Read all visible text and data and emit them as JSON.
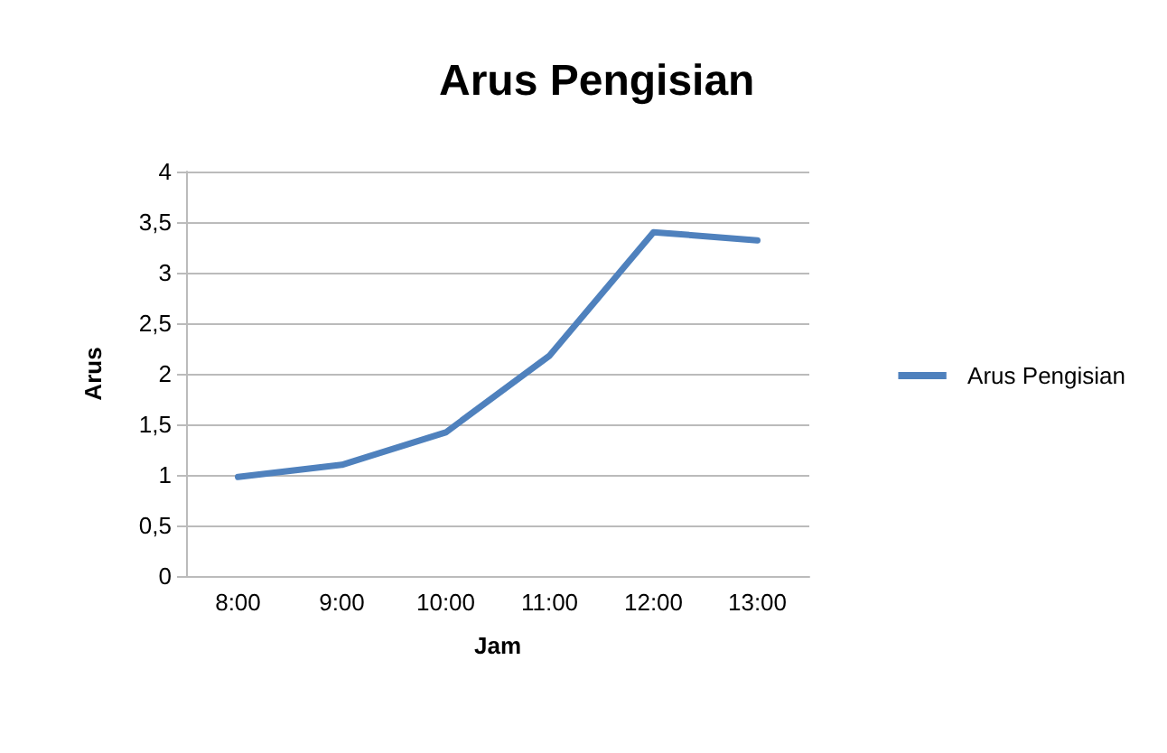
{
  "chart_data": {
    "type": "line",
    "title": "Arus Pengisian",
    "xlabel": "Jam",
    "ylabel": "Arus",
    "categories": [
      "8:00",
      "9:00",
      "10:00",
      "11:00",
      "12:00",
      "13:00"
    ],
    "series": [
      {
        "name": "Arus Pengisian",
        "color": "#4f81bd",
        "values": [
          0.98,
          1.1,
          1.42,
          2.18,
          3.4,
          3.32
        ]
      }
    ],
    "ylim": [
      0,
      4
    ],
    "yticks": [
      0,
      {
        "value": 0.5,
        "label": "0,5"
      },
      1,
      {
        "value": 1.5,
        "label": "1,5"
      },
      2,
      {
        "value": 2.5,
        "label": "2,5"
      },
      3,
      {
        "value": 3.5,
        "label": "3,5"
      },
      4
    ],
    "grid": "y",
    "legend": "right",
    "marker": "none",
    "line_style": "solid"
  }
}
